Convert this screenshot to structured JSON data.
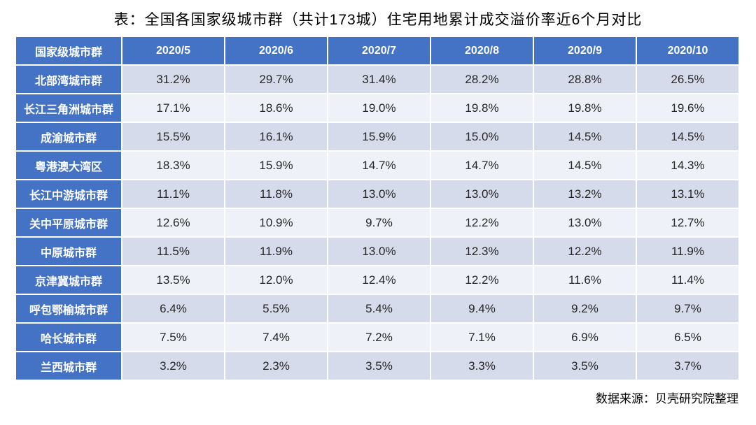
{
  "title": "表：全国各国家级城市群（共计173城）住宅用地累计成交溢价率近6个月对比",
  "source_note": "数据来源：贝壳研究院整理",
  "colors": {
    "header_bg": "#4472C4",
    "band_dark": "#D6DBEB",
    "band_light": "#EEF1F8",
    "header_text": "#FFFFFF",
    "value_text": "#262626"
  },
  "chart_data": {
    "type": "table",
    "title": "全国各国家级城市群（共计173城）住宅用地累计成交溢价率近6个月对比",
    "columns": [
      "国家级城市群",
      "2020/5",
      "2020/6",
      "2020/7",
      "2020/8",
      "2020/9",
      "2020/10"
    ],
    "rows": [
      {
        "name": "北部湾城市群",
        "values": [
          "31.2%",
          "29.7%",
          "31.4%",
          "28.2%",
          "28.8%",
          "26.5%"
        ]
      },
      {
        "name": "长江三角洲城市群",
        "values": [
          "17.1%",
          "18.6%",
          "19.0%",
          "19.8%",
          "19.8%",
          "19.6%"
        ]
      },
      {
        "name": "成渝城市群",
        "values": [
          "15.5%",
          "16.1%",
          "15.9%",
          "15.0%",
          "14.5%",
          "14.5%"
        ]
      },
      {
        "name": "粤港澳大湾区",
        "values": [
          "18.3%",
          "15.9%",
          "14.7%",
          "14.7%",
          "14.5%",
          "14.3%"
        ]
      },
      {
        "name": "长江中游城市群",
        "values": [
          "11.1%",
          "11.8%",
          "13.0%",
          "13.0%",
          "13.2%",
          "13.1%"
        ]
      },
      {
        "name": "关中平原城市群",
        "values": [
          "12.6%",
          "10.9%",
          "9.7%",
          "12.2%",
          "13.0%",
          "12.7%"
        ]
      },
      {
        "name": "中原城市群",
        "values": [
          "11.5%",
          "11.9%",
          "13.0%",
          "12.3%",
          "12.2%",
          "11.9%"
        ]
      },
      {
        "name": "京津冀城市群",
        "values": [
          "13.5%",
          "12.0%",
          "12.4%",
          "12.2%",
          "11.6%",
          "11.4%"
        ]
      },
      {
        "name": "呼包鄂榆城市群",
        "values": [
          "6.4%",
          "5.5%",
          "5.4%",
          "9.4%",
          "9.2%",
          "9.7%"
        ]
      },
      {
        "name": "哈长城市群",
        "values": [
          "7.5%",
          "7.4%",
          "7.2%",
          "7.1%",
          "6.9%",
          "6.5%"
        ]
      },
      {
        "name": "兰西城市群",
        "values": [
          "3.2%",
          "2.3%",
          "3.5%",
          "3.3%",
          "3.5%",
          "3.7%"
        ]
      }
    ]
  }
}
